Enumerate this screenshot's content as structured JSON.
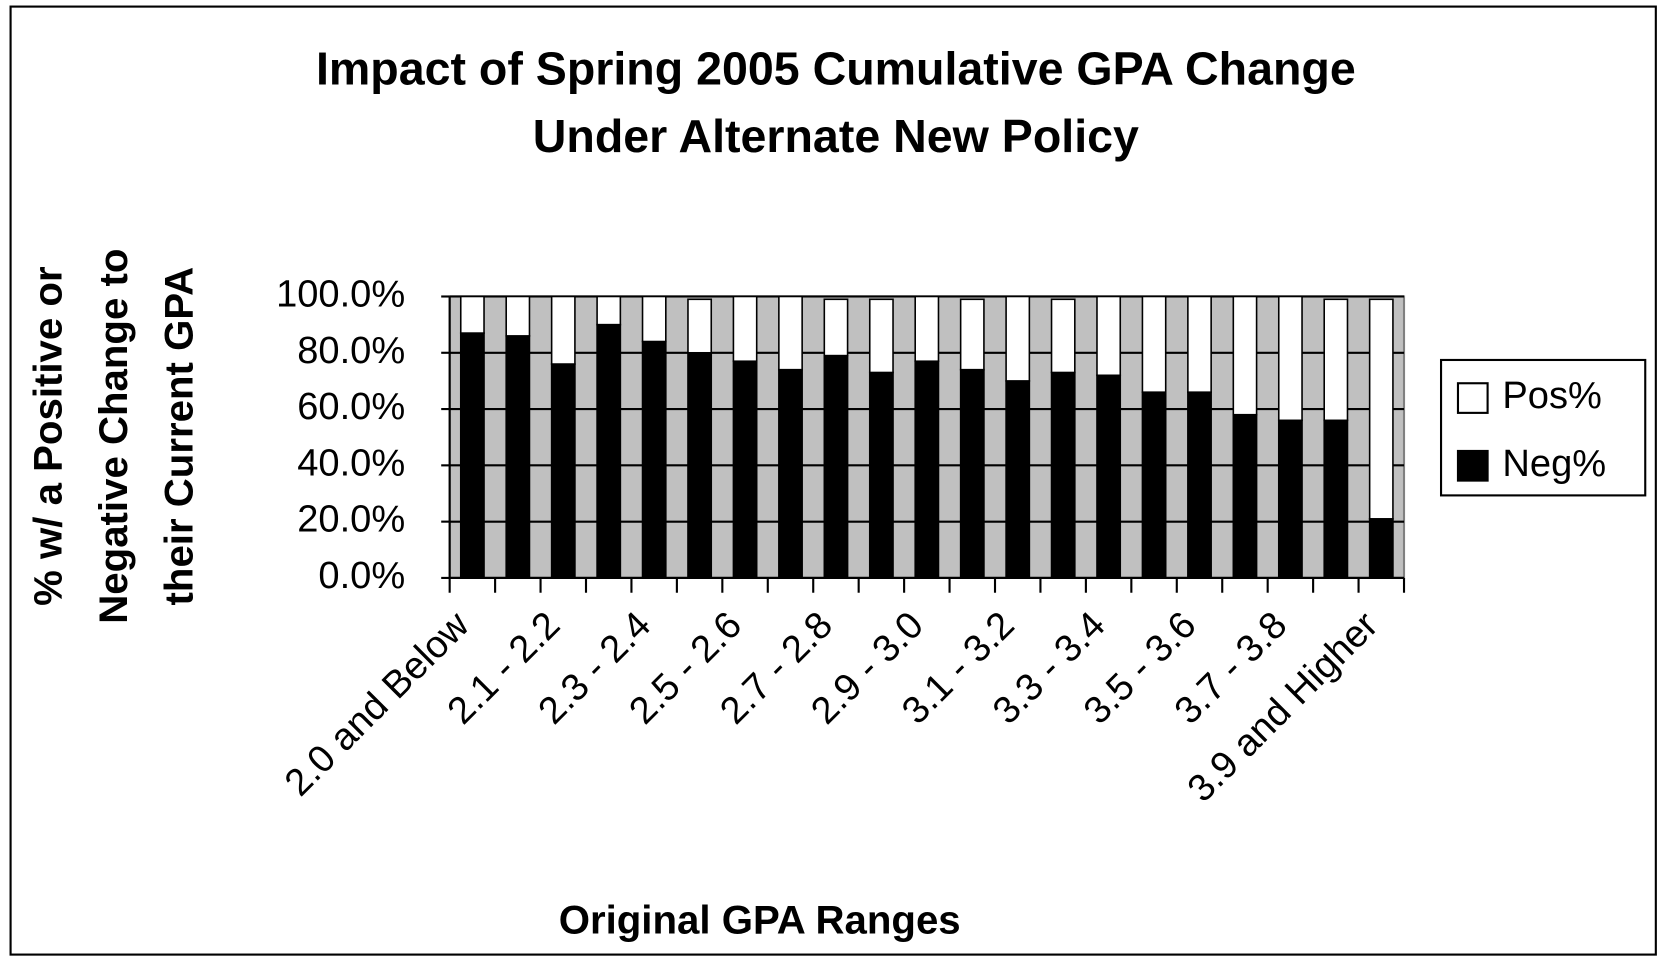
{
  "chart_data": {
    "type": "stacked_bar",
    "title": [
      "Impact of Spring 2005 Cumulative GPA Change",
      "Under Alternate New Policy"
    ],
    "y_label": [
      "% w/ a Positive or",
      "Negative Change to",
      "their Current GPA"
    ],
    "x_label": "Original GPA Ranges",
    "categories": [
      "2.0 and Below",
      null,
      "2.1 - 2.2",
      null,
      "2.3 - 2.4",
      null,
      "2.5 - 2.6",
      null,
      "2.7 - 2.8",
      null,
      "2.9 - 3.0",
      null,
      "3.1 - 3.2",
      null,
      "3.3 - 3.4",
      null,
      "3.5 - 3.6",
      null,
      "3.7 - 3.8",
      null,
      "3.9 and Higher"
    ],
    "series": [
      {
        "name": "Neg%",
        "color": "#000000",
        "values": [
          87,
          86,
          76,
          90,
          84,
          80,
          77,
          74,
          79,
          73,
          77,
          74,
          70,
          73,
          72,
          66,
          66,
          58,
          56,
          56,
          21
        ]
      },
      {
        "name": "Pos%",
        "color": "#ffffff",
        "values": [
          13,
          14,
          24,
          10,
          16,
          19,
          23,
          26,
          20,
          26,
          23,
          25,
          30,
          26,
          28,
          34,
          34,
          42,
          44,
          43,
          78
        ]
      }
    ],
    "ylim": [
      0,
      100
    ],
    "yticks": [
      {
        "value": 0,
        "label": "0.0%"
      },
      {
        "value": 20,
        "label": "20.0%"
      },
      {
        "value": 40,
        "label": "40.0%"
      },
      {
        "value": 60,
        "label": "60.0%"
      },
      {
        "value": 80,
        "label": "80.0%"
      },
      {
        "value": 100,
        "label": "100.0%"
      }
    ],
    "grid": true,
    "plot_background": "#c0c0c0",
    "legend": "right"
  }
}
